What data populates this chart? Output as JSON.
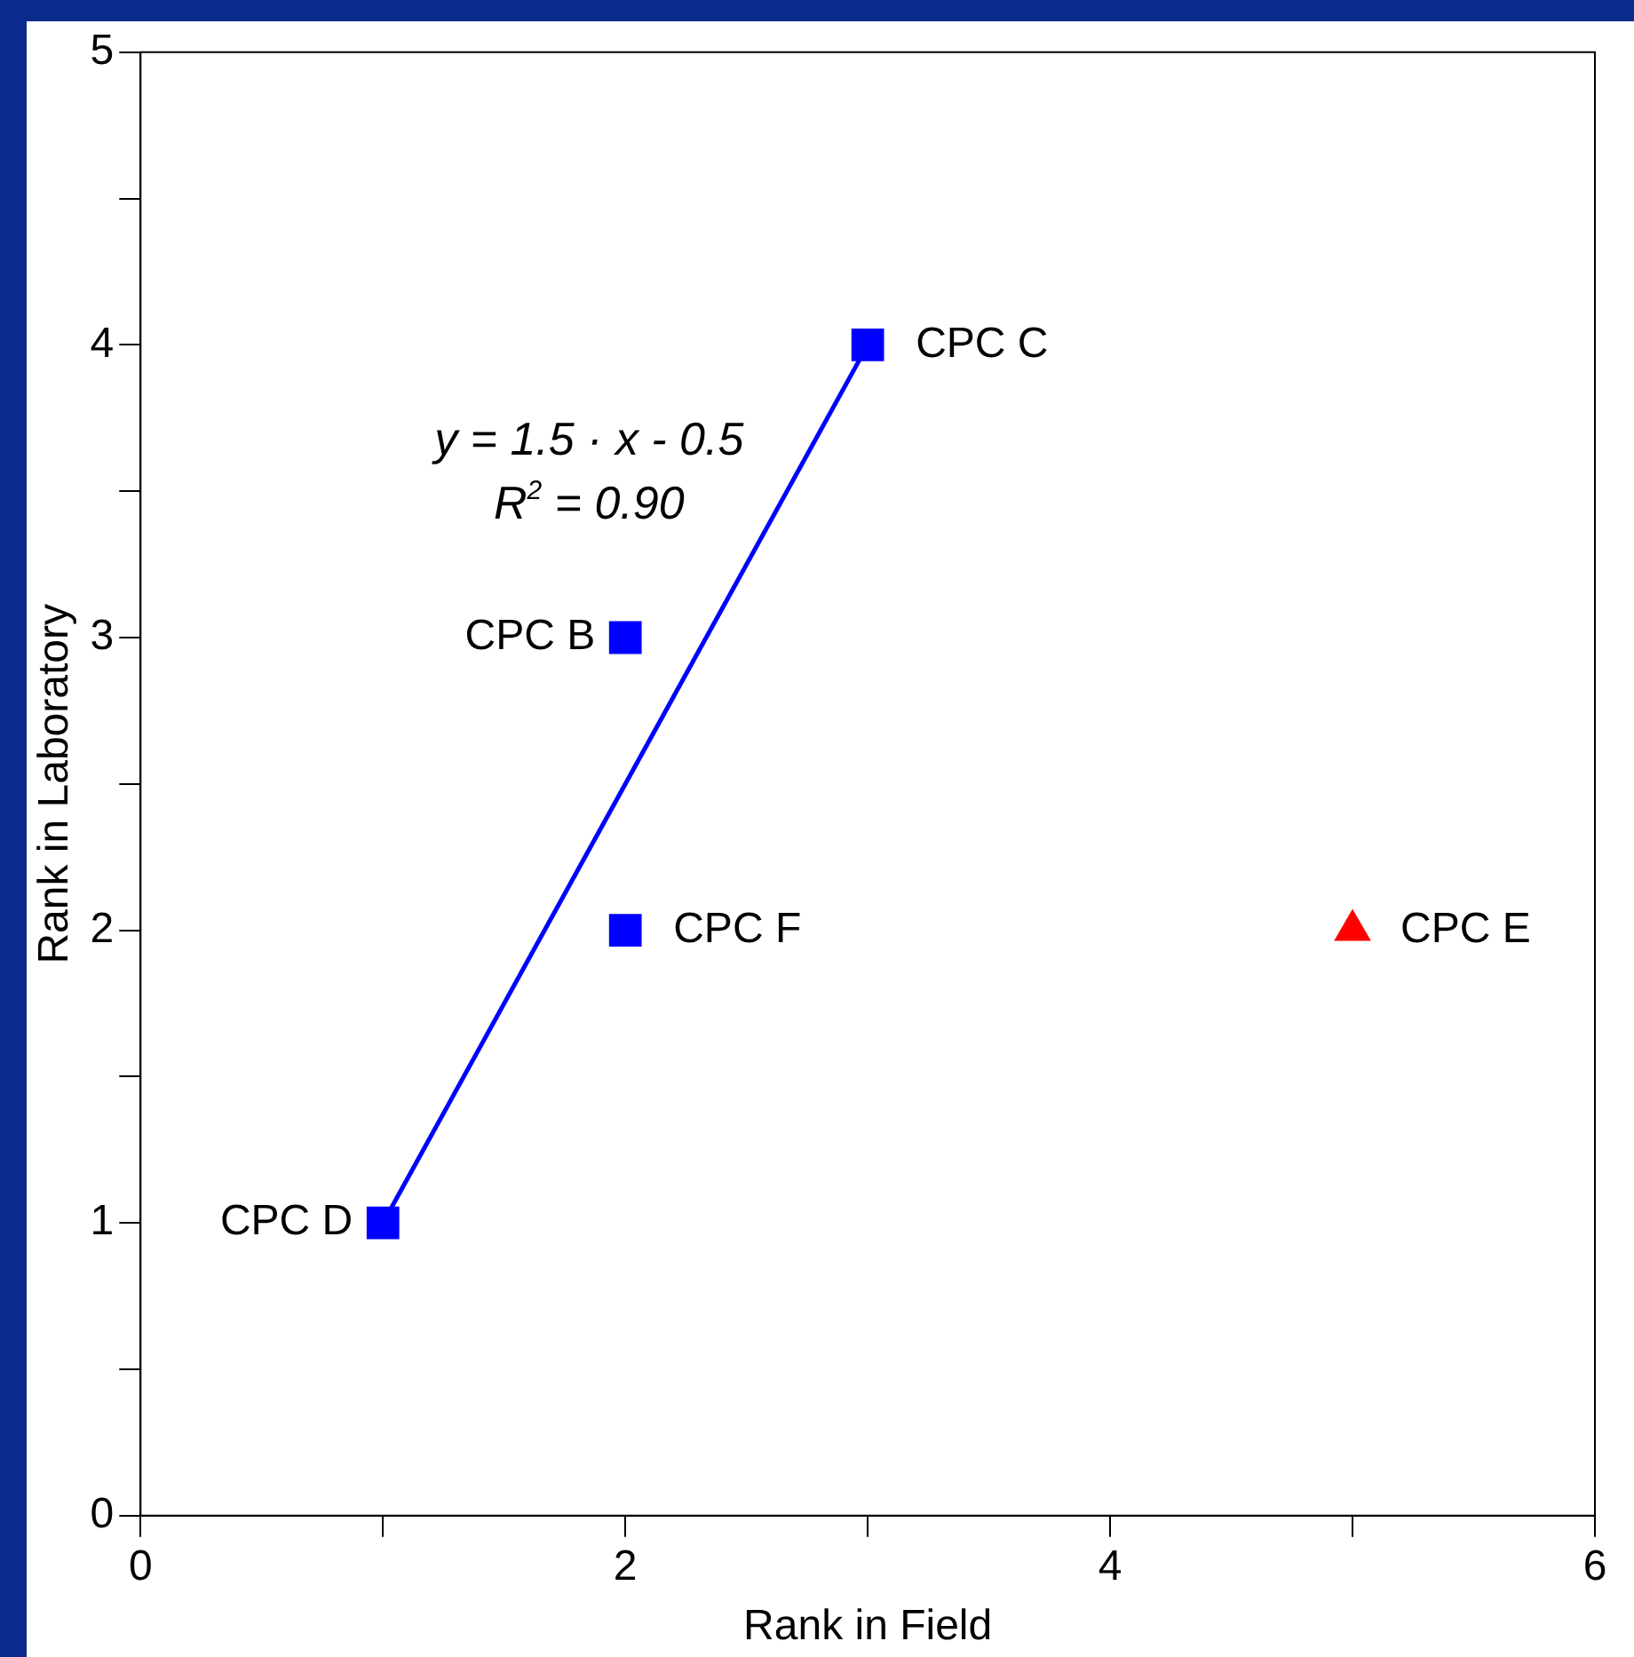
{
  "chart_data": {
    "type": "scatter",
    "xlabel": "Rank in Field",
    "ylabel": "Rank in Laboratory",
    "xlim": [
      0,
      6
    ],
    "xticks": [
      0,
      {
        "value": 1,
        "label": null
      },
      2,
      {
        "value": 3,
        "label": null
      },
      4,
      {
        "value": 5,
        "label": null
      },
      6
    ],
    "ylim": [
      0,
      5
    ],
    "yticks": [
      0,
      {
        "value": 0.5,
        "label": null
      },
      1,
      {
        "value": 1.5,
        "label": null
      },
      2,
      {
        "value": 2.5,
        "label": null
      },
      3,
      {
        "value": 3.5,
        "label": null
      },
      4,
      {
        "value": 4.5,
        "label": null
      },
      5
    ],
    "grid": false,
    "legend": false,
    "series": [
      {
        "type": "line",
        "color": "#0000ff",
        "x": [
          1,
          3
        ],
        "values": [
          1,
          4
        ],
        "marker": "none",
        "line_style": "solid"
      },
      {
        "name": "CPC D",
        "color": "#0000ff",
        "x": [
          1
        ],
        "values": [
          1
        ],
        "marker": "square"
      },
      {
        "name": "CPC B",
        "color": "#0000ff",
        "x": [
          2
        ],
        "values": [
          3
        ],
        "marker": "square"
      },
      {
        "name": "CPC F",
        "color": "#0000ff",
        "x": [
          2
        ],
        "values": [
          2
        ],
        "marker": "square"
      },
      {
        "name": "CPC C",
        "color": "#0000ff",
        "x": [
          3
        ],
        "values": [
          4
        ],
        "marker": "square"
      },
      {
        "name": "CPC E",
        "color": "#ff0000",
        "x": [
          5
        ],
        "values": [
          2
        ],
        "marker": "triangle"
      }
    ],
    "annotations": [
      "y = 1.5 · x - 0.5",
      "R$^{2}$ = 0.90"
    ]
  }
}
